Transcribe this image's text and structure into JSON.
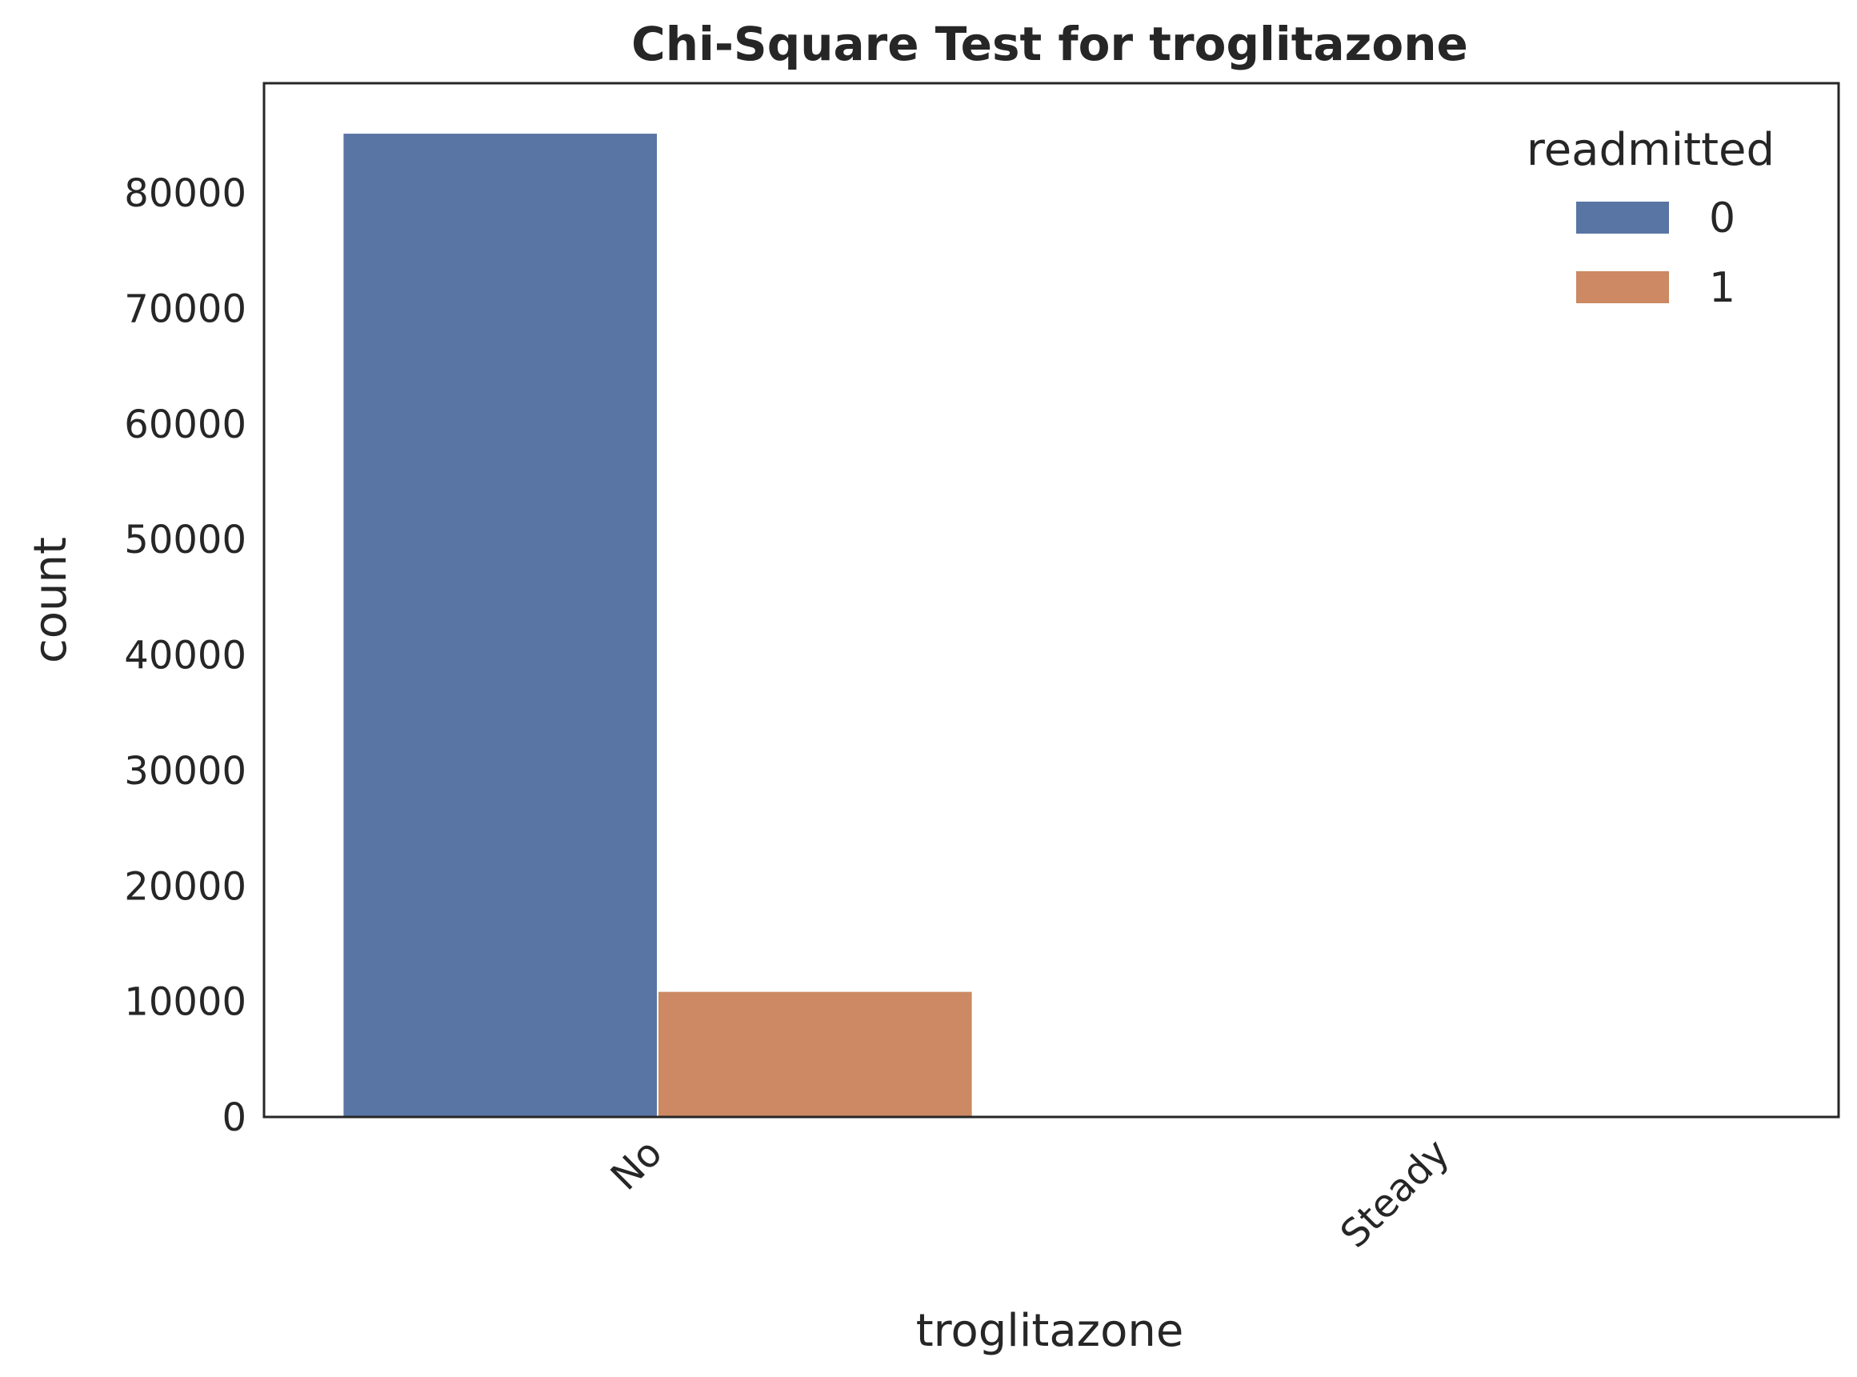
{
  "chart_data": {
    "type": "bar",
    "title": "Chi-Square Test for troglitazone",
    "xlabel": "troglitazone",
    "ylabel": "count",
    "categories": [
      "No",
      "Steady"
    ],
    "legend_title": "readmitted",
    "legend_position": "top-right",
    "series": [
      {
        "name": "0",
        "color": "#5975a4",
        "values": [
          85200,
          3
        ]
      },
      {
        "name": "1",
        "color": "#cc8963",
        "values": [
          10900,
          0
        ]
      }
    ],
    "yticks": [
      0,
      10000,
      20000,
      30000,
      40000,
      50000,
      60000,
      70000,
      80000
    ],
    "ytick_labels": [
      "0",
      "10000",
      "20000",
      "30000",
      "40000",
      "50000",
      "60000",
      "70000",
      "80000"
    ],
    "ylim": [
      0,
      89500
    ],
    "grid": false
  }
}
